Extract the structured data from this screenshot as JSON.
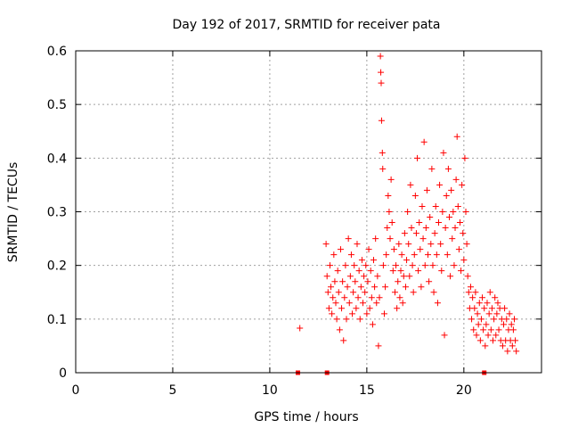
{
  "chart_data": {
    "type": "scatter",
    "title": "Day 192 of 2017, SRMTID for receiver pata",
    "xlabel": "GPS time / hours",
    "ylabel": "SRMTID / TECUs",
    "xlim": [
      0,
      24
    ],
    "ylim": [
      0,
      0.6
    ],
    "x_ticks": [
      0,
      5,
      10,
      15,
      20
    ],
    "y_ticks": [
      0,
      0.1,
      0.2,
      0.3,
      0.4,
      0.5,
      0.6
    ],
    "x_tick_labels": [
      "0",
      "5",
      "10",
      "15",
      "20"
    ],
    "y_tick_labels": [
      "0",
      "0.1",
      "0.2",
      "0.3",
      "0.4",
      "0.5",
      "0.6"
    ],
    "grid": true,
    "marker": "+",
    "color": "#ff0000",
    "series": [
      {
        "name": "SRMTID",
        "points": [
          [
            11.55,
            0.083
          ],
          [
            12.9,
            0.24
          ],
          [
            12.95,
            0.18
          ],
          [
            13.0,
            0.15
          ],
          [
            13.05,
            0.12
          ],
          [
            13.1,
            0.2
          ],
          [
            13.15,
            0.16
          ],
          [
            13.2,
            0.11
          ],
          [
            13.25,
            0.14
          ],
          [
            13.3,
            0.22
          ],
          [
            13.35,
            0.17
          ],
          [
            13.4,
            0.13
          ],
          [
            13.45,
            0.1
          ],
          [
            13.5,
            0.19
          ],
          [
            13.55,
            0.15
          ],
          [
            13.6,
            0.08
          ],
          [
            13.65,
            0.23
          ],
          [
            13.7,
            0.12
          ],
          [
            13.75,
            0.17
          ],
          [
            13.8,
            0.06
          ],
          [
            13.85,
            0.14
          ],
          [
            13.9,
            0.2
          ],
          [
            13.95,
            0.1
          ],
          [
            14.0,
            0.16
          ],
          [
            14.05,
            0.25
          ],
          [
            14.1,
            0.13
          ],
          [
            14.15,
            0.18
          ],
          [
            14.2,
            0.22
          ],
          [
            14.25,
            0.11
          ],
          [
            14.3,
            0.15
          ],
          [
            14.35,
            0.2
          ],
          [
            14.4,
            0.17
          ],
          [
            14.45,
            0.12
          ],
          [
            14.5,
            0.24
          ],
          [
            14.55,
            0.14
          ],
          [
            14.6,
            0.19
          ],
          [
            14.65,
            0.1
          ],
          [
            14.7,
            0.16
          ],
          [
            14.75,
            0.21
          ],
          [
            14.8,
            0.13
          ],
          [
            14.85,
            0.18
          ],
          [
            14.9,
            0.15
          ],
          [
            14.95,
            0.2
          ],
          [
            15.0,
            0.11
          ],
          [
            15.05,
            0.17
          ],
          [
            15.1,
            0.23
          ],
          [
            15.15,
            0.12
          ],
          [
            15.2,
            0.19
          ],
          [
            15.25,
            0.14
          ],
          [
            15.3,
            0.09
          ],
          [
            15.35,
            0.21
          ],
          [
            15.4,
            0.16
          ],
          [
            15.45,
            0.25
          ],
          [
            15.5,
            0.13
          ],
          [
            15.55,
            0.18
          ],
          [
            15.6,
            0.05
          ],
          [
            15.65,
            0.14
          ],
          [
            15.7,
            0.59
          ],
          [
            15.72,
            0.56
          ],
          [
            15.74,
            0.54
          ],
          [
            15.76,
            0.47
          ],
          [
            15.8,
            0.41
          ],
          [
            15.82,
            0.38
          ],
          [
            15.85,
            0.2
          ],
          [
            15.9,
            0.11
          ],
          [
            15.95,
            0.16
          ],
          [
            16.0,
            0.22
          ],
          [
            16.05,
            0.27
          ],
          [
            16.1,
            0.33
          ],
          [
            16.15,
            0.3
          ],
          [
            16.2,
            0.25
          ],
          [
            16.25,
            0.36
          ],
          [
            16.3,
            0.28
          ],
          [
            16.35,
            0.19
          ],
          [
            16.4,
            0.23
          ],
          [
            16.45,
            0.15
          ],
          [
            16.5,
            0.2
          ],
          [
            16.55,
            0.12
          ],
          [
            16.6,
            0.17
          ],
          [
            16.65,
            0.24
          ],
          [
            16.7,
            0.14
          ],
          [
            16.75,
            0.19
          ],
          [
            16.8,
            0.22
          ],
          [
            16.85,
            0.13
          ],
          [
            16.9,
            0.18
          ],
          [
            16.95,
            0.26
          ],
          [
            17.0,
            0.16
          ],
          [
            17.05,
            0.21
          ],
          [
            17.1,
            0.3
          ],
          [
            17.15,
            0.24
          ],
          [
            17.2,
            0.18
          ],
          [
            17.25,
            0.35
          ],
          [
            17.3,
            0.27
          ],
          [
            17.35,
            0.2
          ],
          [
            17.4,
            0.15
          ],
          [
            17.45,
            0.22
          ],
          [
            17.5,
            0.33
          ],
          [
            17.55,
            0.26
          ],
          [
            17.6,
            0.4
          ],
          [
            17.65,
            0.19
          ],
          [
            17.7,
            0.28
          ],
          [
            17.75,
            0.23
          ],
          [
            17.8,
            0.16
          ],
          [
            17.85,
            0.31
          ],
          [
            17.9,
            0.25
          ],
          [
            17.95,
            0.43
          ],
          [
            18.0,
            0.2
          ],
          [
            18.05,
            0.27
          ],
          [
            18.1,
            0.34
          ],
          [
            18.15,
            0.22
          ],
          [
            18.2,
            0.17
          ],
          [
            18.25,
            0.29
          ],
          [
            18.3,
            0.24
          ],
          [
            18.35,
            0.38
          ],
          [
            18.4,
            0.2
          ],
          [
            18.45,
            0.15
          ],
          [
            18.5,
            0.26
          ],
          [
            18.55,
            0.31
          ],
          [
            18.6,
            0.22
          ],
          [
            18.65,
            0.13
          ],
          [
            18.7,
            0.28
          ],
          [
            18.75,
            0.35
          ],
          [
            18.8,
            0.24
          ],
          [
            18.85,
            0.19
          ],
          [
            18.9,
            0.3
          ],
          [
            18.95,
            0.41
          ],
          [
            19.0,
            0.07
          ],
          [
            19.05,
            0.27
          ],
          [
            19.1,
            0.33
          ],
          [
            19.15,
            0.22
          ],
          [
            19.2,
            0.38
          ],
          [
            19.25,
            0.29
          ],
          [
            19.3,
            0.18
          ],
          [
            19.35,
            0.34
          ],
          [
            19.4,
            0.25
          ],
          [
            19.45,
            0.3
          ],
          [
            19.5,
            0.2
          ],
          [
            19.55,
            0.27
          ],
          [
            19.6,
            0.36
          ],
          [
            19.65,
            0.44
          ],
          [
            19.7,
            0.31
          ],
          [
            19.75,
            0.23
          ],
          [
            19.8,
            0.28
          ],
          [
            19.85,
            0.19
          ],
          [
            19.9,
            0.35
          ],
          [
            19.95,
            0.26
          ],
          [
            20.0,
            0.21
          ],
          [
            20.05,
            0.4
          ],
          [
            20.1,
            0.3
          ],
          [
            20.15,
            0.24
          ],
          [
            20.2,
            0.18
          ],
          [
            20.25,
            0.15
          ],
          [
            20.3,
            0.12
          ],
          [
            20.35,
            0.16
          ],
          [
            20.4,
            0.1
          ],
          [
            20.45,
            0.14
          ],
          [
            20.5,
            0.08
          ],
          [
            20.55,
            0.12
          ],
          [
            20.6,
            0.15
          ],
          [
            20.65,
            0.07
          ],
          [
            20.7,
            0.11
          ],
          [
            20.75,
            0.09
          ],
          [
            20.8,
            0.13
          ],
          [
            20.85,
            0.06
          ],
          [
            20.9,
            0.1
          ],
          [
            20.95,
            0.14
          ],
          [
            21.0,
            0.08
          ],
          [
            21.05,
            0.12
          ],
          [
            21.1,
            0.05
          ],
          [
            21.15,
            0.09
          ],
          [
            21.2,
            0.13
          ],
          [
            21.25,
            0.07
          ],
          [
            21.3,
            0.11
          ],
          [
            21.35,
            0.15
          ],
          [
            21.4,
            0.08
          ],
          [
            21.45,
            0.12
          ],
          [
            21.5,
            0.06
          ],
          [
            21.55,
            0.1
          ],
          [
            21.6,
            0.14
          ],
          [
            21.65,
            0.07
          ],
          [
            21.7,
            0.11
          ],
          [
            21.75,
            0.13
          ],
          [
            21.8,
            0.08
          ],
          [
            21.85,
            0.12
          ],
          [
            21.9,
            0.06
          ],
          [
            21.95,
            0.1
          ],
          [
            22.0,
            0.05
          ],
          [
            22.05,
            0.09
          ],
          [
            22.1,
            0.12
          ],
          [
            22.15,
            0.06
          ],
          [
            22.2,
            0.1
          ],
          [
            22.25,
            0.04
          ],
          [
            22.3,
            0.08
          ],
          [
            22.35,
            0.11
          ],
          [
            22.4,
            0.06
          ],
          [
            22.45,
            0.09
          ],
          [
            22.5,
            0.05
          ],
          [
            22.55,
            0.08
          ],
          [
            22.6,
            0.1
          ],
          [
            22.65,
            0.06
          ],
          [
            22.7,
            0.04
          ]
        ]
      }
    ],
    "axis_markers_x": [
      11.45,
      12.95,
      21.05
    ]
  }
}
